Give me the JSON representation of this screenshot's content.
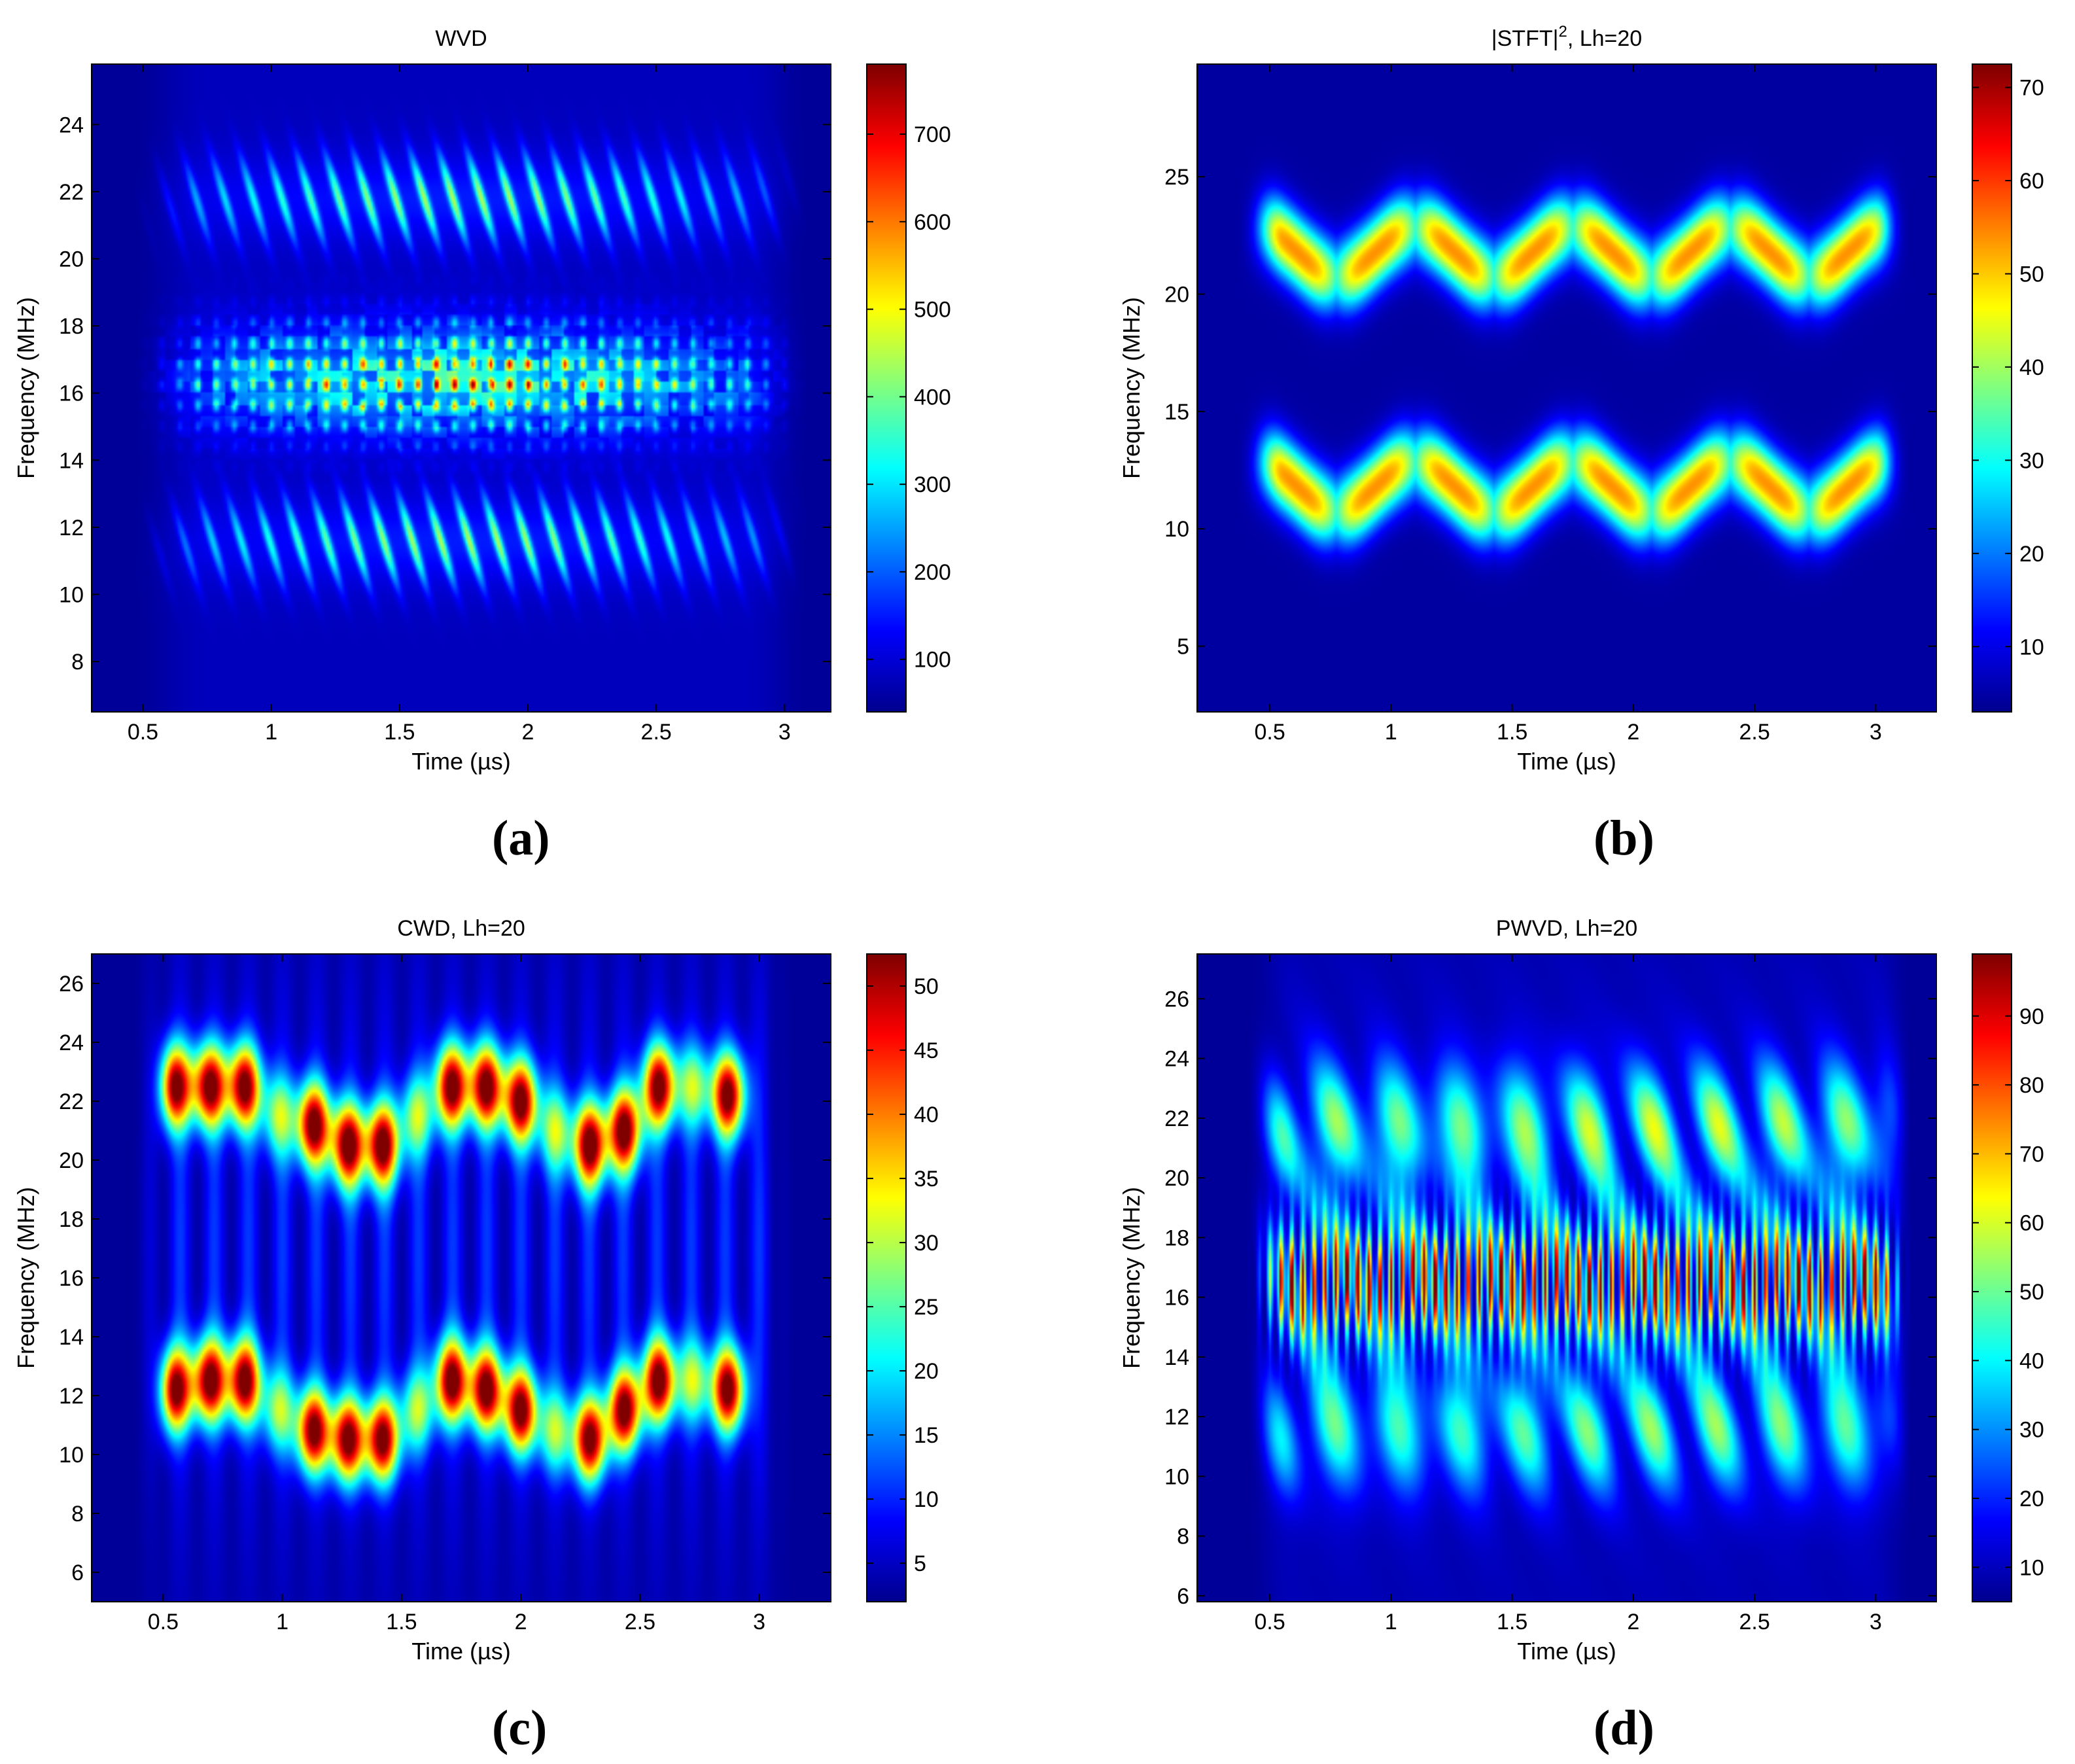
{
  "panels_labels": [
    "(a)",
    "(b)",
    "(c)",
    "(d)"
  ],
  "colormap": [
    "#00008f",
    "#0000ff",
    "#0080ff",
    "#00ffff",
    "#80ff80",
    "#ffff00",
    "#ff8000",
    "#ff0000",
    "#800000"
  ],
  "chart_data": [
    {
      "type": "heatmap",
      "title": "WVD",
      "title_sup": "",
      "title_after": "",
      "xlabel": "Time (µs)",
      "ylabel": "Frequency (MHz)",
      "xlim": [
        0.3,
        3.18
      ],
      "ylim": [
        6.5,
        25.8
      ],
      "xticks": [
        0.5,
        1,
        1.5,
        2,
        2.5,
        3
      ],
      "xtick_labels": [
        "0.5",
        "1",
        "1.5",
        "2",
        "2.5",
        "3"
      ],
      "yticks": [
        8,
        10,
        12,
        14,
        16,
        18,
        20,
        22,
        24
      ],
      "ytick_labels": [
        "8",
        "10",
        "12",
        "14",
        "16",
        "18",
        "20",
        "22",
        "24"
      ],
      "clim": [
        40,
        780
      ],
      "cticks": [
        100,
        200,
        300,
        400,
        500,
        600,
        700
      ],
      "ctick_labels": [
        "100",
        "200",
        "300",
        "400",
        "500",
        "600",
        "700"
      ],
      "pattern": "wvd"
    },
    {
      "type": "heatmap",
      "title": "|STFT|",
      "title_sup": "2",
      "title_after": ", Lh=20",
      "xlabel": "Time (µs)",
      "ylabel": "Frequency (MHz)",
      "xlim": [
        0.2,
        3.25
      ],
      "ylim": [
        2.2,
        29.8
      ],
      "xticks": [
        0.5,
        1,
        1.5,
        2,
        2.5,
        3
      ],
      "xtick_labels": [
        "0.5",
        "1",
        "1.5",
        "2",
        "2.5",
        "3"
      ],
      "yticks": [
        5,
        10,
        15,
        20,
        25
      ],
      "ytick_labels": [
        "5",
        "10",
        "15",
        "20",
        "25"
      ],
      "clim": [
        3,
        72.5
      ],
      "cticks": [
        10,
        20,
        30,
        40,
        50,
        60,
        70
      ],
      "ctick_labels": [
        "10",
        "20",
        "30",
        "40",
        "50",
        "60",
        "70"
      ],
      "pattern": "stft"
    },
    {
      "type": "heatmap",
      "title": "CWD,  Lh=20",
      "title_sup": "",
      "title_after": "",
      "xlabel": "Time (µs)",
      "ylabel": "Frequency (MHz)",
      "xlim": [
        0.2,
        3.3
      ],
      "ylim": [
        5,
        27
      ],
      "xticks": [
        0.5,
        1,
        1.5,
        2,
        2.5,
        3
      ],
      "xtick_labels": [
        "0.5",
        "1",
        "1.5",
        "2",
        "2.5",
        "3"
      ],
      "yticks": [
        6,
        8,
        10,
        12,
        14,
        16,
        18,
        20,
        22,
        24,
        26
      ],
      "ytick_labels": [
        "6",
        "8",
        "10",
        "12",
        "14",
        "16",
        "18",
        "20",
        "22",
        "24",
        "26"
      ],
      "clim": [
        2,
        52.5
      ],
      "cticks": [
        5,
        10,
        15,
        20,
        25,
        30,
        35,
        40,
        45,
        50
      ],
      "ctick_labels": [
        "5",
        "10",
        "15",
        "20",
        "25",
        "30",
        "35",
        "40",
        "45",
        "50"
      ],
      "pattern": "cwd"
    },
    {
      "type": "heatmap",
      "title": "PWVD, Lh=20",
      "title_sup": "",
      "title_after": "",
      "xlabel": "Time (µs)",
      "ylabel": "Frequency (MHz)",
      "xlim": [
        0.2,
        3.25
      ],
      "ylim": [
        5.8,
        27.5
      ],
      "xticks": [
        0.5,
        1,
        1.5,
        2,
        2.5,
        3
      ],
      "xtick_labels": [
        "0.5",
        "1",
        "1.5",
        "2",
        "2.5",
        "3"
      ],
      "yticks": [
        6,
        8,
        10,
        12,
        14,
        16,
        18,
        20,
        22,
        24,
        26
      ],
      "ytick_labels": [
        "6",
        "8",
        "10",
        "12",
        "14",
        "16",
        "18",
        "20",
        "22",
        "24",
        "26"
      ],
      "clim": [
        5,
        99
      ],
      "cticks": [
        10,
        20,
        30,
        40,
        50,
        60,
        70,
        80,
        90
      ],
      "ctick_labels": [
        "10",
        "20",
        "30",
        "40",
        "50",
        "60",
        "70",
        "80",
        "90"
      ],
      "pattern": "pwvd"
    }
  ]
}
